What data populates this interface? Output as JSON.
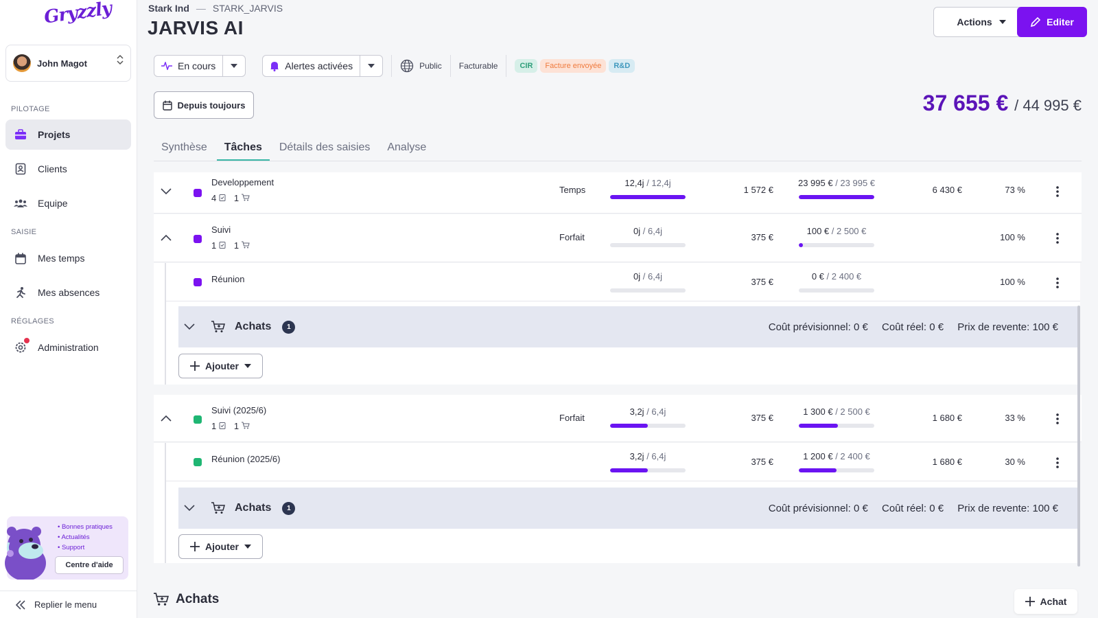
{
  "sidebar": {
    "logo": "Gryzzly",
    "user": {
      "name": "John Magot"
    },
    "sections": {
      "pilotage": "PILOTAGE",
      "saisie": "SAISIE",
      "reglages": "RÉGLAGES"
    },
    "items": {
      "projets": "Projets",
      "clients": "Clients",
      "equipe": "Equipe",
      "mes_temps": "Mes temps",
      "mes_absences": "Mes absences",
      "administration": "Administration"
    },
    "help": {
      "items": [
        "• Bonnes pratiques",
        "• Actualités",
        "• Support"
      ],
      "button": "Centre d'aide"
    },
    "collapse_label": "Replier le menu"
  },
  "header": {
    "breadcrumb": {
      "company": "Stark Ind",
      "sep": "—",
      "code": "STARK_JARVIS"
    },
    "title": "JARVIS AI",
    "actions_label": "Actions",
    "edit_label": "Editer"
  },
  "status": {
    "state": "En cours",
    "alerts": "Alertes activées",
    "visibility": "Public",
    "billing": "Facturable",
    "tags": [
      "CIR",
      "Facture envoyée",
      "R&D"
    ]
  },
  "filters": {
    "date_label": "Depuis toujours"
  },
  "totals": {
    "amount": "37 655 €",
    "total": "/ 44 995 €"
  },
  "tabs": [
    "Synthèse",
    "Tâches",
    "Détails des saisies",
    "Analyse"
  ],
  "tasks": [
    {
      "name": "Developpement",
      "tasks_count": "4",
      "purchases_count": "1",
      "type": "Temps",
      "time_done": "12,4j",
      "time_total": "/ 12,4j",
      "time_progress": 1.0,
      "rate": "1 572 €",
      "cost_done": "23 995 €",
      "cost_total": "/ 23 995 €",
      "cost_progress": 1.0,
      "margin": "6 430 €",
      "percent": "73 %",
      "color": "#7b12f0"
    },
    {
      "name": "Suivi",
      "tasks_count": "1",
      "purchases_count": "1",
      "type": "Forfait",
      "time_done": "0j",
      "time_total": "/ 6,4j",
      "time_progress": 0.0,
      "rate": "375 €",
      "cost_done": "100 €",
      "cost_total": "/ 2 500 €",
      "cost_progress": 0.04,
      "margin": "",
      "percent": "100 %",
      "color": "#7b12f0"
    },
    {
      "name": "Réunion",
      "time_done": "0j",
      "time_total": "/ 6,4j",
      "time_progress": 0.0,
      "rate": "375 €",
      "cost_done": "0 €",
      "cost_total": "/ 2 400 €",
      "cost_progress": 0.0,
      "percent": "100 %",
      "color": "#7b12f0"
    },
    {
      "name": "Suivi (2025/6)",
      "tasks_count": "1",
      "purchases_count": "1",
      "type": "Forfait",
      "time_done": "3,2j",
      "time_total": "/ 6,4j",
      "time_progress": 0.5,
      "rate": "375 €",
      "cost_done": "1 300 €",
      "cost_total": "/ 2 500 €",
      "cost_progress": 0.52,
      "margin": "1 680 €",
      "percent": "33 %",
      "color": "#1fb673"
    },
    {
      "name": "Réunion (2025/6)",
      "time_done": "3,2j",
      "time_total": "/ 6,4j",
      "time_progress": 0.5,
      "rate": "375 €",
      "cost_done": "1 200 €",
      "cost_total": "/ 2 400 €",
      "cost_progress": 0.5,
      "margin": "1 680 €",
      "percent": "30 %",
      "color": "#1fb673"
    }
  ],
  "achats": {
    "label": "Achats",
    "count": "1",
    "cost_forecast": "Coût prévisionnel: 0 €",
    "cost_real": "Coût réel: 0 €",
    "resale": "Prix de revente: 100 €",
    "add_label": "Ajouter"
  },
  "bottom": {
    "title": "Achats",
    "add_label": "Achat"
  }
}
